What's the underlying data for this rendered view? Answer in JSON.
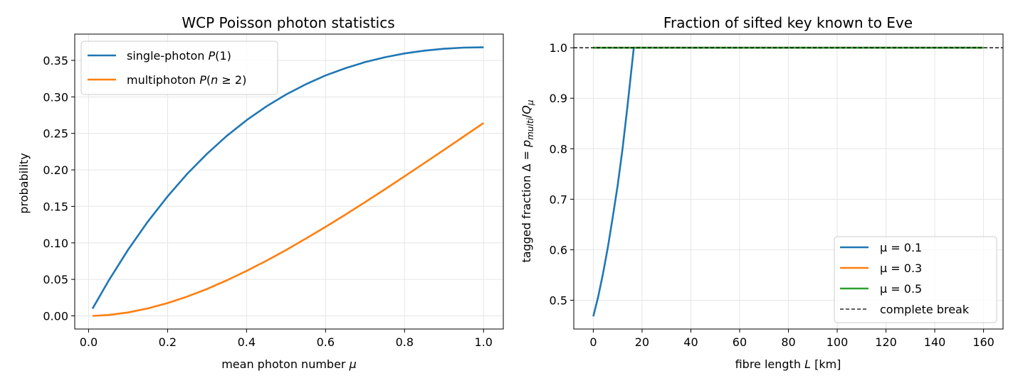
{
  "chart_data": [
    {
      "type": "line",
      "title": "WCP Poisson photon statistics",
      "xlabel": "mean photon number μ",
      "ylabel": "probability",
      "xlim": [
        -0.035,
        1.05
      ],
      "ylim": [
        -0.018,
        0.386
      ],
      "xticks": [
        0.0,
        0.2,
        0.4,
        0.6,
        0.8,
        1.0
      ],
      "xtick_labels": [
        "0.0",
        "0.2",
        "0.4",
        "0.6",
        "0.8",
        "1.0"
      ],
      "yticks": [
        0.0,
        0.05,
        0.1,
        0.15,
        0.2,
        0.25,
        0.3,
        0.35
      ],
      "ytick_labels": [
        "0.00",
        "0.05",
        "0.10",
        "0.15",
        "0.20",
        "0.25",
        "0.30",
        "0.35"
      ],
      "grid": true,
      "legend_position": "top-left",
      "series": [
        {
          "name": "single-photon P(1)",
          "color": "#1f77b4",
          "x": [
            0.01,
            0.05,
            0.1,
            0.15,
            0.2,
            0.25,
            0.3,
            0.35,
            0.4,
            0.45,
            0.5,
            0.55,
            0.6,
            0.65,
            0.7,
            0.75,
            0.8,
            0.85,
            0.9,
            0.95,
            1.0
          ],
          "y": [
            0.0099,
            0.0476,
            0.0905,
            0.1291,
            0.1637,
            0.1947,
            0.2222,
            0.2466,
            0.2681,
            0.2869,
            0.3033,
            0.3173,
            0.3293,
            0.3393,
            0.3476,
            0.3543,
            0.3595,
            0.3633,
            0.3659,
            0.3675,
            0.3679
          ]
        },
        {
          "name": "multiphoton P(n ≥ 2)",
          "color": "#ff7f0e",
          "x": [
            0.01,
            0.05,
            0.1,
            0.15,
            0.2,
            0.25,
            0.3,
            0.35,
            0.4,
            0.45,
            0.5,
            0.55,
            0.6,
            0.65,
            0.7,
            0.75,
            0.8,
            0.85,
            0.9,
            0.95,
            1.0
          ],
          "y": [
            5e-05,
            0.0012,
            0.0047,
            0.0102,
            0.0175,
            0.0265,
            0.0369,
            0.0487,
            0.0616,
            0.0755,
            0.0902,
            0.1058,
            0.1219,
            0.1386,
            0.1558,
            0.1733,
            0.1912,
            0.2092,
            0.2275,
            0.2458,
            0.2642
          ]
        }
      ]
    },
    {
      "type": "line",
      "title": "Fraction of sifted key known to Eve",
      "xlabel": "fibre length L [km]",
      "ylabel": "tagged fraction Δ = p_multi/Q_μ",
      "xlim": [
        -8,
        168
      ],
      "ylim": [
        0.443,
        1.027
      ],
      "xticks": [
        0,
        20,
        40,
        60,
        80,
        100,
        120,
        140,
        160
      ],
      "xtick_labels": [
        "0",
        "20",
        "40",
        "60",
        "80",
        "100",
        "120",
        "140",
        "160"
      ],
      "yticks": [
        0.5,
        0.6,
        0.7,
        0.8,
        0.9,
        1.0
      ],
      "ytick_labels": [
        "0.5",
        "0.6",
        "0.7",
        "0.8",
        "0.9",
        "1.0"
      ],
      "grid": true,
      "legend_position": "lower-right",
      "series": [
        {
          "name": "μ = 0.1",
          "color": "#1f77b4",
          "x": [
            0,
            2,
            4,
            6,
            8,
            10,
            12,
            14,
            16.6,
            20,
            40,
            60,
            80,
            100,
            120,
            140,
            160
          ],
          "y": [
            0.468,
            0.507,
            0.553,
            0.606,
            0.665,
            0.728,
            0.8,
            0.884,
            1.0,
            1.0,
            1.0,
            1.0,
            1.0,
            1.0,
            1.0,
            1.0,
            1.0
          ]
        },
        {
          "name": "μ = 0.3",
          "color": "#ff7f0e",
          "x": [
            0,
            40,
            80,
            120,
            160
          ],
          "y": [
            1.0,
            1.0,
            1.0,
            1.0,
            1.0
          ]
        },
        {
          "name": "μ = 0.5",
          "color": "#2ca02c",
          "x": [
            0,
            40,
            80,
            120,
            160
          ],
          "y": [
            1.0,
            1.0,
            1.0,
            1.0,
            1.0
          ]
        },
        {
          "name": "complete break",
          "color": "#000000",
          "style": "dashed",
          "x": [
            -8,
            168
          ],
          "y": [
            1.0,
            1.0
          ]
        }
      ]
    }
  ]
}
